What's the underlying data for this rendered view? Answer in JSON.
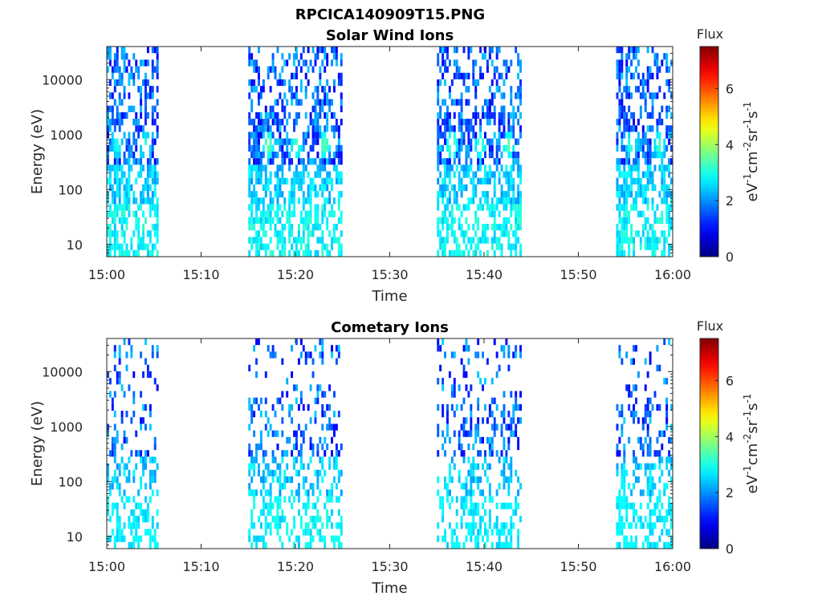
{
  "figure_title": "RPCICA140909T15.PNG",
  "chart_data": [
    {
      "type": "heatmap",
      "title": "Solar Wind Ions",
      "xlabel": "Time",
      "ylabel": "Energy (eV)",
      "x_range": [
        "15:00",
        "16:00"
      ],
      "x_ticks": [
        "15:00",
        "15:10",
        "15:20",
        "15:30",
        "15:40",
        "15:50",
        "16:00"
      ],
      "y_scale": "log",
      "y_range": [
        6,
        40000
      ],
      "y_ticks": [
        "10",
        "100",
        "1000",
        "10000"
      ],
      "colorbar": {
        "label": "Flux",
        "units": "eV⁻¹cm⁻²sr⁻¹s⁻¹",
        "range": [
          0,
          7.5
        ],
        "ticks": [
          "0",
          "2",
          "4",
          "6"
        ],
        "colormap": "jet"
      },
      "segments": [
        {
          "start": "15:00",
          "end": "15:05.5",
          "peak_flux": 3.5
        },
        {
          "start": "15:15",
          "end": "15:25",
          "peak_flux": 3.8
        },
        {
          "start": "15:35",
          "end": "15:44",
          "peak_flux": 3.8
        },
        {
          "start": "15:54",
          "end": "16:00",
          "peak_flux": 3.5
        }
      ],
      "peaks": [
        {
          "time": "15:01",
          "energy": 650,
          "flux": 3.2
        },
        {
          "time": "15:04",
          "energy": 650,
          "flux": 3.3
        },
        {
          "time": "15:17",
          "energy": 650,
          "flux": 3.8
        },
        {
          "time": "15:20",
          "energy": 650,
          "flux": 3.6
        },
        {
          "time": "15:23",
          "energy": 650,
          "flux": 3.7
        },
        {
          "time": "15:36.5",
          "energy": 650,
          "flux": 3.8
        },
        {
          "time": "15:39.5",
          "energy": 650,
          "flux": 3.6
        },
        {
          "time": "15:42.5",
          "energy": 650,
          "flux": 3.7
        },
        {
          "time": "15:55.5",
          "energy": 650,
          "flux": 3.4
        },
        {
          "time": "15:58.5",
          "energy": 650,
          "flux": 3.5
        }
      ]
    },
    {
      "type": "heatmap",
      "title": "Cometary Ions",
      "xlabel": "Time",
      "ylabel": "Energy (eV)",
      "x_range": [
        "15:00",
        "16:00"
      ],
      "x_ticks": [
        "15:00",
        "15:10",
        "15:20",
        "15:30",
        "15:40",
        "15:50",
        "16:00"
      ],
      "y_scale": "log",
      "y_range": [
        6,
        40000
      ],
      "y_ticks": [
        "10",
        "100",
        "1000",
        "10000"
      ],
      "colorbar": {
        "label": "Flux",
        "units": "eV⁻¹cm⁻²sr⁻¹s⁻¹",
        "range": [
          0,
          7.5
        ],
        "ticks": [
          "0",
          "2",
          "4",
          "6"
        ],
        "colormap": "jet"
      },
      "segments": [
        {
          "start": "15:00",
          "end": "15:05.5",
          "peak_flux": 2.8
        },
        {
          "start": "15:15",
          "end": "15:25",
          "peak_flux": 3.0
        },
        {
          "start": "15:35",
          "end": "15:44",
          "peak_flux": 2.8
        },
        {
          "start": "15:54",
          "end": "16:00",
          "peak_flux": 2.8
        }
      ],
      "peaks": [
        {
          "time": "15:01",
          "energy": 650,
          "flux": 2.5
        },
        {
          "time": "15:16",
          "energy": 650,
          "flux": 2.6
        },
        {
          "time": "15:23",
          "energy": 650,
          "flux": 2.6
        },
        {
          "time": "15:36",
          "energy": 650,
          "flux": 2.5
        },
        {
          "time": "15:39",
          "energy": 650,
          "flux": 2.5
        },
        {
          "time": "15:55.5",
          "energy": 650,
          "flux": 2.4
        }
      ]
    }
  ]
}
